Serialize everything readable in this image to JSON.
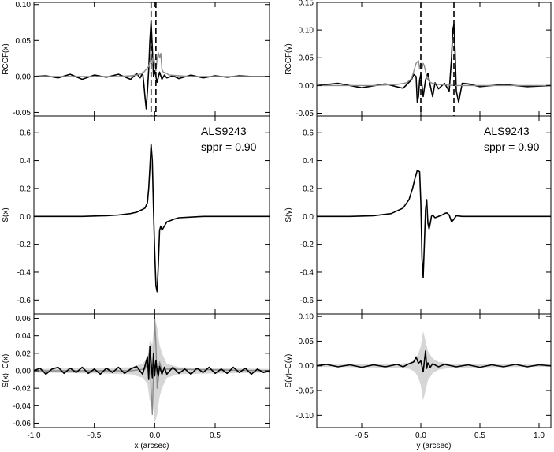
{
  "chart_data": [
    {
      "type": "line",
      "xlabel": "",
      "ylabel": "RCCF(x)",
      "xlim": [
        -1.0,
        0.95
      ],
      "ylim": [
        -0.055,
        0.103
      ],
      "xticks": [
        -1.0,
        -0.5,
        0.0,
        0.5
      ],
      "xtick_labels": [],
      "yticks": [
        -0.05,
        0.0,
        0.05,
        0.1
      ],
      "ytick_labels": [
        "-0.05",
        "0.00",
        "0.05",
        "0.10"
      ],
      "vlines": [
        -0.03,
        0.01
      ],
      "series": [
        {
          "color": "#000000",
          "x": [
            -1.0,
            -0.9,
            -0.8,
            -0.7,
            -0.6,
            -0.5,
            -0.4,
            -0.3,
            -0.2,
            -0.15,
            -0.12,
            -0.1,
            -0.09,
            -0.08,
            -0.07,
            -0.06,
            -0.05,
            -0.04,
            -0.03,
            -0.02,
            -0.01,
            0.0,
            0.02,
            0.04,
            0.06,
            0.08,
            0.1,
            0.15,
            0.2,
            0.3,
            0.4,
            0.5,
            0.6,
            0.7,
            0.8,
            0.95
          ],
          "y": [
            0.0,
            0.001,
            -0.002,
            0.003,
            -0.004,
            0.002,
            -0.001,
            0.003,
            -0.004,
            0.004,
            -0.002,
            0.005,
            -0.01,
            -0.03,
            -0.045,
            -0.02,
            0.01,
            0.05,
            0.077,
            0.04,
            0.0,
            0.008,
            -0.008,
            0.006,
            -0.004,
            0.002,
            -0.002,
            0.001,
            -0.003,
            0.002,
            -0.002,
            0.001,
            -0.001,
            0.001,
            0.0,
            0.0
          ]
        },
        {
          "color": "#8a8a8a",
          "x": [
            -1.0,
            -0.6,
            -0.3,
            -0.2,
            -0.15,
            -0.1,
            -0.07,
            -0.05,
            -0.04,
            -0.03,
            -0.02,
            -0.01,
            0.0,
            0.01,
            0.02,
            0.03,
            0.04,
            0.05,
            0.06,
            0.07,
            0.09,
            0.12,
            0.2,
            0.3,
            0.5,
            0.95
          ],
          "y": [
            0.0,
            0.0,
            0.0,
            0.001,
            0.002,
            0.004,
            0.01,
            0.014,
            0.02,
            0.032,
            0.018,
            0.03,
            0.018,
            0.008,
            0.025,
            0.033,
            0.026,
            0.032,
            0.01,
            0.006,
            0.005,
            0.002,
            0.001,
            0.0,
            0.0,
            0.0
          ]
        }
      ]
    },
    {
      "type": "line",
      "xlabel": "",
      "ylabel": "S(x)",
      "xlim": [
        -1.0,
        0.95
      ],
      "ylim": [
        -0.7,
        0.72
      ],
      "xticks": [
        -1.0,
        -0.5,
        0.0,
        0.5
      ],
      "xtick_labels": [],
      "yticks": [
        -0.6,
        -0.4,
        -0.2,
        0.0,
        0.2,
        0.4,
        0.6
      ],
      "ytick_labels": [
        "-0.6",
        "-0.4",
        "-0.2",
        "0.0",
        "0.2",
        "0.4",
        "0.6"
      ],
      "annotation": [
        "ALS9243",
        "sppr = 0.90"
      ],
      "series": [
        {
          "color": "#000000",
          "x": [
            -1.0,
            -0.8,
            -0.6,
            -0.4,
            -0.3,
            -0.2,
            -0.15,
            -0.1,
            -0.08,
            -0.06,
            -0.05,
            -0.04,
            -0.03,
            -0.02,
            -0.01,
            0.0,
            0.01,
            0.02,
            0.03,
            0.04,
            0.05,
            0.06,
            0.08,
            0.1,
            0.13,
            0.16,
            0.2,
            0.3,
            0.4,
            0.6,
            0.8,
            0.95
          ],
          "y": [
            0.0,
            0.0,
            0.0,
            0.005,
            0.01,
            0.02,
            0.03,
            0.05,
            0.06,
            0.1,
            0.2,
            0.35,
            0.52,
            0.4,
            0.05,
            -0.25,
            -0.5,
            -0.54,
            -0.35,
            -0.1,
            -0.07,
            -0.1,
            -0.07,
            -0.04,
            -0.03,
            -0.02,
            -0.01,
            -0.005,
            0.0,
            0.0,
            0.0,
            0.0
          ]
        }
      ]
    },
    {
      "type": "line",
      "xlabel": "x (arcsec)",
      "ylabel": "S(x)–C(x)",
      "xlim": [
        -1.0,
        0.95
      ],
      "ylim": [
        -0.065,
        0.065
      ],
      "xticks": [
        -1.0,
        -0.5,
        0.0,
        0.5
      ],
      "xtick_labels": [
        "-1.0",
        "-0.5",
        "0.0",
        "0.5"
      ],
      "yticks": [
        -0.06,
        -0.04,
        -0.02,
        0.0,
        0.02,
        0.04,
        0.06
      ],
      "ytick_labels": [
        "-0.06",
        "-0.04",
        "-0.02",
        "0.00",
        "0.02",
        "0.04",
        "0.06"
      ],
      "band": {
        "color": "#d6d6d6",
        "x": [
          -1.0,
          -0.5,
          -0.2,
          -0.1,
          -0.06,
          -0.04,
          -0.02,
          0.0,
          0.02,
          0.04,
          0.06,
          0.1,
          0.2,
          0.5,
          0.95
        ],
        "half_width": [
          0.002,
          0.003,
          0.004,
          0.008,
          0.015,
          0.035,
          0.03,
          0.06,
          0.05,
          0.03,
          0.02,
          0.008,
          0.004,
          0.003,
          0.002
        ]
      },
      "series": [
        {
          "color": "#8a8a8a",
          "x": [
            -1.0,
            -0.2,
            -0.08,
            -0.06,
            -0.04,
            -0.03,
            -0.02,
            -0.01,
            0.0,
            0.01,
            0.02,
            0.03,
            0.04,
            0.06,
            0.1,
            0.95
          ],
          "y": [
            0.0,
            0.0,
            0.002,
            0.01,
            0.024,
            -0.02,
            -0.05,
            0.0,
            0.06,
            0.03,
            -0.02,
            -0.01,
            0.01,
            0.0,
            0.002,
            0.0
          ]
        },
        {
          "color": "#000000",
          "x": [
            -1.0,
            -0.95,
            -0.9,
            -0.85,
            -0.8,
            -0.75,
            -0.7,
            -0.65,
            -0.6,
            -0.55,
            -0.5,
            -0.45,
            -0.4,
            -0.35,
            -0.3,
            -0.25,
            -0.2,
            -0.15,
            -0.1,
            -0.08,
            -0.06,
            -0.05,
            -0.04,
            -0.03,
            -0.02,
            -0.01,
            0.0,
            0.01,
            0.02,
            0.03,
            0.04,
            0.06,
            0.08,
            0.1,
            0.15,
            0.2,
            0.25,
            0.3,
            0.35,
            0.4,
            0.45,
            0.5,
            0.55,
            0.6,
            0.65,
            0.7,
            0.75,
            0.8,
            0.85,
            0.9,
            0.95
          ],
          "y": [
            0.0,
            0.003,
            -0.004,
            0.002,
            0.004,
            -0.003,
            0.003,
            -0.002,
            0.004,
            -0.003,
            0.002,
            -0.004,
            0.003,
            -0.002,
            0.004,
            -0.003,
            0.002,
            0.005,
            -0.004,
            0.006,
            0.016,
            -0.01,
            0.028,
            0.01,
            -0.008,
            0.02,
            -0.006,
            0.012,
            0.0,
            -0.006,
            0.005,
            -0.004,
            0.004,
            -0.004,
            0.004,
            -0.003,
            0.002,
            -0.004,
            0.003,
            -0.002,
            0.004,
            -0.003,
            0.002,
            -0.003,
            0.004,
            -0.002,
            0.003,
            -0.004,
            0.002,
            -0.002,
            0.0
          ]
        }
      ]
    },
    {
      "type": "line",
      "xlabel": "",
      "ylabel": "RCCF(y)",
      "xlim": [
        -0.88,
        1.1
      ],
      "ylim": [
        -0.055,
        0.15
      ],
      "xticks": [
        -0.5,
        0.0,
        0.5,
        1.0
      ],
      "xtick_labels": [],
      "yticks": [
        -0.05,
        0.0,
        0.05,
        0.1,
        0.15
      ],
      "ytick_labels": [
        "-0.05",
        "0.00",
        "0.05",
        "0.10",
        "0.15"
      ],
      "vlines": [
        0.0,
        0.28
      ],
      "series": [
        {
          "color": "#000000",
          "x": [
            -0.88,
            -0.7,
            -0.5,
            -0.3,
            -0.15,
            -0.08,
            -0.06,
            -0.04,
            -0.03,
            -0.02,
            -0.01,
            0.0,
            0.02,
            0.04,
            0.06,
            0.08,
            0.1,
            0.12,
            0.15,
            0.2,
            0.24,
            0.26,
            0.27,
            0.28,
            0.29,
            0.3,
            0.32,
            0.35,
            0.4,
            0.5,
            0.7,
            0.9,
            1.1
          ],
          "y": [
            0.0,
            0.004,
            -0.004,
            0.003,
            -0.005,
            0.01,
            0.02,
            0.016,
            -0.03,
            -0.02,
            0.01,
            0.02,
            -0.02,
            0.01,
            0.022,
            0.0,
            -0.02,
            0.005,
            -0.006,
            0.004,
            -0.01,
            0.05,
            0.1,
            0.11,
            0.06,
            -0.01,
            -0.03,
            0.004,
            0.003,
            -0.002,
            0.002,
            -0.002,
            0.0
          ]
        },
        {
          "color": "#8a8a8a",
          "x": [
            -0.88,
            -0.4,
            -0.2,
            -0.12,
            -0.08,
            -0.06,
            -0.04,
            -0.02,
            -0.01,
            0.0,
            0.01,
            0.02,
            0.03,
            0.04,
            0.05,
            0.06,
            0.08,
            0.1,
            0.15,
            0.3,
            1.1
          ],
          "y": [
            0.0,
            0.0,
            0.002,
            0.005,
            0.012,
            0.025,
            0.04,
            0.045,
            0.03,
            0.04,
            0.03,
            0.04,
            0.035,
            0.025,
            0.015,
            0.01,
            0.006,
            0.004,
            0.002,
            0.0,
            0.0
          ]
        }
      ]
    },
    {
      "type": "line",
      "xlabel": "",
      "ylabel": "S(y)",
      "xlim": [
        -0.88,
        1.1
      ],
      "ylim": [
        -0.7,
        0.72
      ],
      "xticks": [
        -0.5,
        0.0,
        0.5,
        1.0
      ],
      "xtick_labels": [],
      "yticks": [
        -0.6,
        -0.4,
        -0.2,
        0.0,
        0.2,
        0.4,
        0.6
      ],
      "ytick_labels": [
        "-0.6",
        "-0.4",
        "-0.2",
        "0.0",
        "0.2",
        "0.4",
        "0.6"
      ],
      "annotation": [
        "ALS9243",
        "sppr = 0.90"
      ],
      "series": [
        {
          "color": "#000000",
          "x": [
            -0.88,
            -0.6,
            -0.4,
            -0.25,
            -0.15,
            -0.1,
            -0.07,
            -0.05,
            -0.03,
            -0.01,
            0.0,
            0.01,
            0.02,
            0.03,
            0.04,
            0.05,
            0.06,
            0.07,
            0.08,
            0.09,
            0.1,
            0.12,
            0.15,
            0.18,
            0.2,
            0.22,
            0.24,
            0.26,
            0.28,
            0.3,
            0.35,
            0.5,
            0.8,
            1.1
          ],
          "y": [
            0.0,
            0.0,
            0.005,
            0.02,
            0.06,
            0.12,
            0.2,
            0.27,
            0.33,
            0.32,
            0.1,
            -0.3,
            -0.44,
            -0.2,
            0.05,
            0.12,
            -0.05,
            -0.09,
            -0.05,
            0.0,
            0.01,
            -0.01,
            0.0,
            0.01,
            0.02,
            0.025,
            0.01,
            -0.04,
            -0.02,
            0.005,
            0.0,
            0.0,
            0.0,
            0.0
          ]
        }
      ]
    },
    {
      "type": "line",
      "xlabel": "y (arcsec)",
      "ylabel": "S(y)–C(y)",
      "xlim": [
        -0.88,
        1.1
      ],
      "ylim": [
        -0.125,
        0.105
      ],
      "xticks": [
        -0.5,
        0.0,
        0.5,
        1.0
      ],
      "xtick_labels": [
        "-0.5",
        "0.0",
        "0.5",
        "1.0"
      ],
      "yticks": [
        -0.1,
        -0.05,
        0.0,
        0.05,
        0.1
      ],
      "ytick_labels": [
        "-0.10",
        "-0.05",
        "0.00",
        "0.05",
        "0.10"
      ],
      "band": {
        "color": "#d6d6d6",
        "x": [
          -0.88,
          -0.5,
          -0.2,
          -0.1,
          -0.05,
          -0.02,
          0.0,
          0.02,
          0.04,
          0.06,
          0.1,
          0.15,
          0.25,
          0.5,
          1.1
        ],
        "half_width": [
          0.002,
          0.003,
          0.004,
          0.006,
          0.012,
          0.025,
          0.04,
          0.07,
          0.05,
          0.03,
          0.015,
          0.008,
          0.004,
          0.003,
          0.002
        ]
      },
      "series": [
        {
          "color": "#000000",
          "x": [
            -0.88,
            -0.8,
            -0.7,
            -0.6,
            -0.5,
            -0.4,
            -0.3,
            -0.2,
            -0.15,
            -0.1,
            -0.06,
            -0.04,
            -0.02,
            0.0,
            0.02,
            0.04,
            0.05,
            0.06,
            0.08,
            0.1,
            0.15,
            0.2,
            0.3,
            0.4,
            0.5,
            0.6,
            0.7,
            0.8,
            0.9,
            1.0,
            1.1
          ],
          "y": [
            0.0,
            0.003,
            -0.002,
            0.002,
            -0.003,
            0.002,
            -0.002,
            0.003,
            -0.002,
            0.004,
            0.008,
            0.018,
            0.005,
            0.01,
            -0.012,
            0.03,
            -0.005,
            0.006,
            -0.003,
            0.004,
            -0.002,
            0.003,
            -0.002,
            0.002,
            -0.003,
            0.002,
            -0.002,
            0.003,
            -0.002,
            0.002,
            0.0
          ]
        }
      ]
    }
  ]
}
